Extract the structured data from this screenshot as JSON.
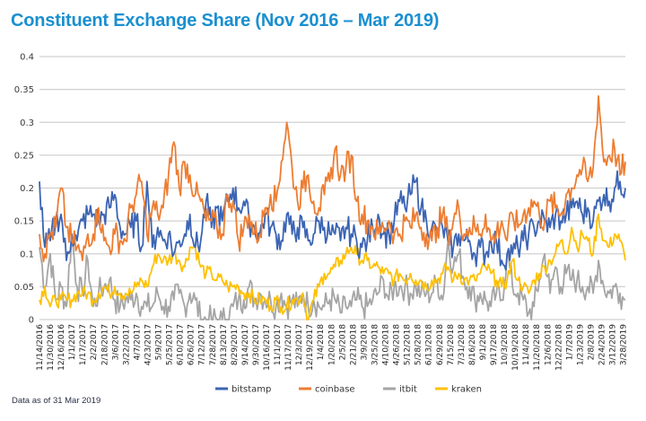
{
  "header": {
    "title": "Constituent Exchange Share (Nov 2016 – Mar 2019)"
  },
  "footer": {
    "note": "Data as of 31 Mar 2019"
  },
  "chart_data": {
    "type": "line",
    "title": "Constituent Exchange Share (Nov 2016 – Mar 2019)",
    "xlabel": "",
    "ylabel": "",
    "ylim": [
      0,
      0.4
    ],
    "yticks": [
      0,
      0.05,
      0.1,
      0.15,
      0.2,
      0.25,
      0.3,
      0.35,
      0.4
    ],
    "ytick_labels": [
      "0",
      "0.05",
      "0.1",
      "0.15",
      "0.2",
      "0.25",
      "0.3",
      "0.35",
      "0.4"
    ],
    "grid": true,
    "legend_position": "bottom",
    "x_tick_labels": [
      "11/14/2016",
      "11/30/2016",
      "12/16/2016",
      "1/1/2017",
      "1/17/2017",
      "2/2/2017",
      "2/18/2017",
      "3/6/2017",
      "3/22/2017",
      "4/7/2017",
      "4/23/2017",
      "5/9/2017",
      "5/25/2017",
      "6/10/2017",
      "6/26/2017",
      "7/12/2017",
      "7/28/2017",
      "8/13/2017",
      "8/29/2017",
      "9/14/2017",
      "9/30/2017",
      "10/16/2017",
      "11/1/2017",
      "11/17/2017",
      "12/3/2017",
      "12/19/2017",
      "1/4/2018",
      "1/20/2018",
      "2/5/2018",
      "2/21/2018",
      "3/9/2018",
      "3/25/2018",
      "4/10/2018",
      "4/26/2018",
      "5/12/2018",
      "5/28/2018",
      "6/13/2018",
      "6/29/2018",
      "7/15/2018",
      "7/31/2018",
      "8/16/2018",
      "9/1/2018",
      "9/17/2018",
      "10/3/2018",
      "10/19/2018",
      "11/4/2018",
      "11/20/2018",
      "12/6/2018",
      "12/22/2018",
      "1/7/2019",
      "1/23/2019",
      "2/8/2019",
      "2/24/2019",
      "3/12/2019",
      "3/28/2019"
    ],
    "x_interval_days": 8,
    "series": [
      {
        "name": "bitstamp",
        "color": "#3b64b4",
        "values": [
          0.21,
          0.11,
          0.12,
          0.15,
          0.16,
          0.09,
          0.13,
          0.12,
          0.15,
          0.16,
          0.16,
          0.15,
          0.16,
          0.17,
          0.19,
          0.14,
          0.13,
          0.14,
          0.15,
          0.11,
          0.21,
          0.11,
          0.14,
          0.12,
          0.13,
          0.1,
          0.12,
          0.13,
          0.16,
          0.11,
          0.12,
          0.18,
          0.14,
          0.17,
          0.15,
          0.18,
          0.2,
          0.17,
          0.18,
          0.15,
          0.14,
          0.13,
          0.16,
          0.14,
          0.13,
          0.12,
          0.16,
          0.13,
          0.14,
          0.14,
          0.12,
          0.13,
          0.15,
          0.14,
          0.13,
          0.13,
          0.12,
          0.14,
          0.13,
          0.12,
          0.11,
          0.12,
          0.14,
          0.16,
          0.13,
          0.13,
          0.15,
          0.18,
          0.17,
          0.19,
          0.21,
          0.17,
          0.15,
          0.14,
          0.13,
          0.14,
          0.12,
          0.11,
          0.13,
          0.12,
          0.12,
          0.1,
          0.11,
          0.1,
          0.12,
          0.12,
          0.09,
          0.1,
          0.1,
          0.11,
          0.12,
          0.13,
          0.14,
          0.15,
          0.15,
          0.14,
          0.16,
          0.15,
          0.16,
          0.17,
          0.18,
          0.16,
          0.17,
          0.15,
          0.18,
          0.19,
          0.18,
          0.2,
          0.21,
          0.2
        ]
      },
      {
        "name": "coinbase",
        "color": "#ed7d31",
        "values": [
          0.13,
          0.1,
          0.13,
          0.14,
          0.2,
          0.14,
          0.12,
          0.11,
          0.09,
          0.13,
          0.13,
          0.17,
          0.12,
          0.11,
          0.13,
          0.12,
          0.12,
          0.17,
          0.19,
          0.21,
          0.13,
          0.17,
          0.16,
          0.17,
          0.22,
          0.27,
          0.2,
          0.24,
          0.22,
          0.19,
          0.18,
          0.15,
          0.15,
          0.14,
          0.13,
          0.19,
          0.18,
          0.12,
          0.14,
          0.16,
          0.13,
          0.13,
          0.17,
          0.19,
          0.18,
          0.24,
          0.3,
          0.23,
          0.18,
          0.2,
          0.22,
          0.18,
          0.17,
          0.19,
          0.21,
          0.26,
          0.22,
          0.23,
          0.25,
          0.18,
          0.16,
          0.15,
          0.14,
          0.13,
          0.14,
          0.15,
          0.13,
          0.13,
          0.15,
          0.14,
          0.16,
          0.14,
          0.13,
          0.12,
          0.14,
          0.16,
          0.13,
          0.15,
          0.17,
          0.13,
          0.14,
          0.14,
          0.13,
          0.16,
          0.12,
          0.13,
          0.15,
          0.12,
          0.16,
          0.14,
          0.16,
          0.17,
          0.18,
          0.16,
          0.15,
          0.18,
          0.17,
          0.16,
          0.19,
          0.2,
          0.22,
          0.23,
          0.21,
          0.23,
          0.34,
          0.24,
          0.25,
          0.26,
          0.22,
          0.24
        ]
      },
      {
        "name": "itbit",
        "color": "#a5a5a5",
        "values": [
          0.11,
          0.05,
          0.1,
          0.03,
          0.05,
          0.02,
          0.13,
          0.05,
          0.04,
          0.09,
          0.02,
          0.04,
          0.05,
          0.06,
          0.03,
          0.02,
          0.03,
          0.03,
          0.04,
          0.02,
          0.02,
          0.02,
          0.04,
          0.02,
          0.02,
          0.03,
          0.04,
          0.02,
          0.04,
          0.03,
          0.0,
          0.0,
          0.0,
          0.0,
          0.0,
          0.0,
          0.02,
          0.03,
          0.03,
          0.05,
          0.03,
          0.04,
          0.03,
          0.03,
          0.02,
          0.04,
          0.02,
          0.03,
          0.02,
          0.04,
          0.02,
          0.03,
          0.02,
          0.02,
          0.03,
          0.03,
          0.01,
          0.02,
          0.02,
          0.03,
          0.02,
          0.02,
          0.03,
          0.04,
          0.06,
          0.03,
          0.05,
          0.05,
          0.05,
          0.04,
          0.05,
          0.04,
          0.04,
          0.04,
          0.06,
          0.03,
          0.12,
          0.08,
          0.1,
          0.06,
          0.05,
          0.03,
          0.04,
          0.03,
          0.02,
          0.04,
          0.03,
          0.1,
          0.05,
          0.04,
          0.03,
          0.01,
          0.02,
          0.06,
          0.1,
          0.04,
          0.08,
          0.05,
          0.07,
          0.06,
          0.06,
          0.05,
          0.05,
          0.04,
          0.09,
          0.05,
          0.04,
          0.05,
          0.04,
          0.03
        ]
      },
      {
        "name": "kraken",
        "color": "#ffc000",
        "values": [
          0.03,
          0.05,
          0.02,
          0.03,
          0.03,
          0.03,
          0.03,
          0.04,
          0.04,
          0.04,
          0.03,
          0.04,
          0.05,
          0.04,
          0.05,
          0.04,
          0.04,
          0.04,
          0.05,
          0.06,
          0.05,
          0.08,
          0.1,
          0.09,
          0.09,
          0.1,
          0.09,
          0.08,
          0.11,
          0.11,
          0.08,
          0.07,
          0.07,
          0.06,
          0.06,
          0.05,
          0.05,
          0.05,
          0.04,
          0.04,
          0.03,
          0.03,
          0.03,
          0.02,
          0.03,
          0.02,
          0.02,
          0.03,
          0.03,
          0.04,
          0.0,
          0.03,
          0.05,
          0.07,
          0.07,
          0.08,
          0.09,
          0.1,
          0.11,
          0.1,
          0.09,
          0.09,
          0.08,
          0.08,
          0.07,
          0.07,
          0.06,
          0.07,
          0.06,
          0.07,
          0.06,
          0.06,
          0.05,
          0.06,
          0.06,
          0.07,
          0.08,
          0.06,
          0.07,
          0.06,
          0.06,
          0.06,
          0.07,
          0.08,
          0.07,
          0.06,
          0.05,
          0.06,
          0.09,
          0.06,
          0.05,
          0.04,
          0.06,
          0.07,
          0.08,
          0.09,
          0.1,
          0.12,
          0.1,
          0.14,
          0.11,
          0.13,
          0.12,
          0.1,
          0.16,
          0.12,
          0.11,
          0.13,
          0.12,
          0.09
        ]
      }
    ]
  }
}
